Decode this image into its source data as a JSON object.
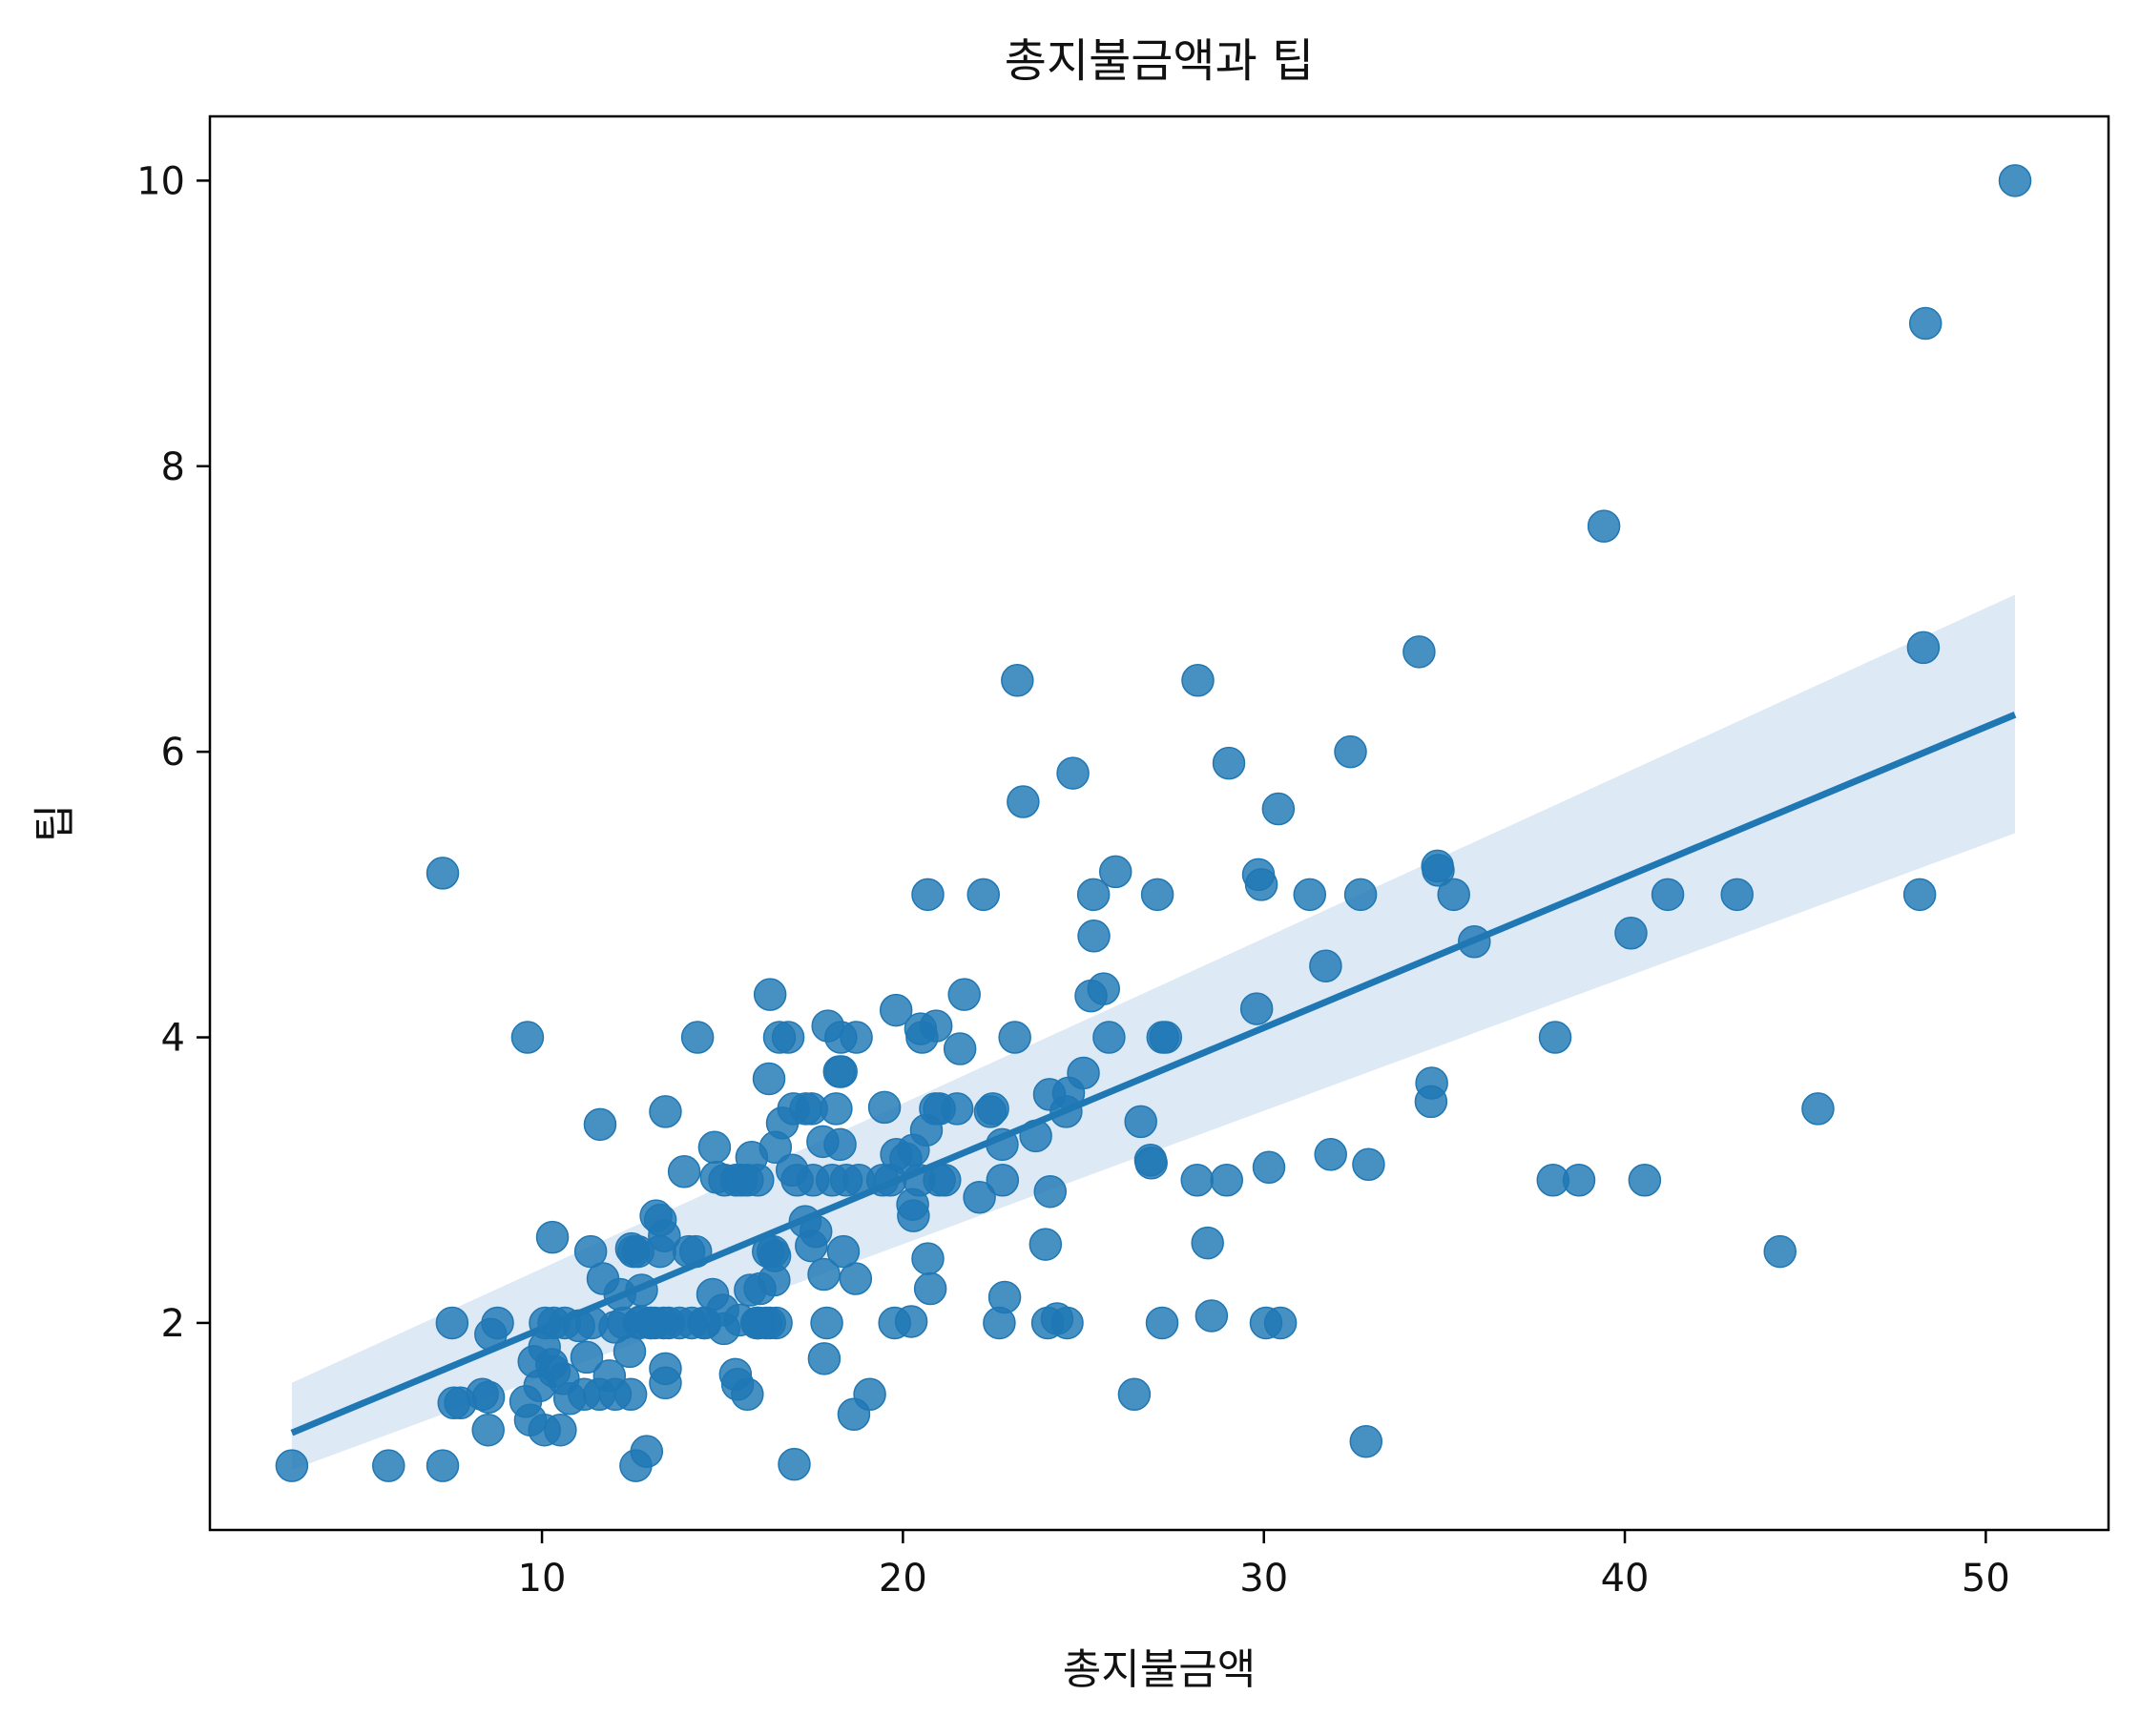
{
  "chart_data": {
    "type": "scatter",
    "title": "총지불금액과 팁",
    "xlabel": "총지불금액",
    "ylabel": "팁",
    "xlim": [
      0.8,
      53.4
    ],
    "ylim": [
      0.55,
      10.45
    ],
    "xticks": [
      10,
      20,
      30,
      40,
      50
    ],
    "yticks": [
      2,
      4,
      6,
      8,
      10
    ],
    "grid": false,
    "colors": {
      "points": "#1f77b4",
      "line": "#1f77b4",
      "band": "#c6dbef"
    },
    "regression": {
      "x_start": 3.07,
      "y_start": 1.23,
      "x_end": 50.81,
      "y_end": 6.26,
      "ci_start": [
        0.97,
        1.58
      ],
      "ci_end": [
        5.43,
        7.1
      ]
    },
    "points": [
      [
        3.07,
        1.0
      ],
      [
        5.75,
        1.0
      ],
      [
        7.25,
        1.0
      ],
      [
        7.25,
        5.15
      ],
      [
        7.51,
        2.0
      ],
      [
        7.56,
        1.44
      ],
      [
        7.74,
        1.44
      ],
      [
        8.35,
        1.5
      ],
      [
        8.51,
        1.25
      ],
      [
        8.52,
        1.48
      ],
      [
        8.58,
        1.92
      ],
      [
        8.77,
        2.0
      ],
      [
        9.55,
        1.45
      ],
      [
        9.6,
        4.0
      ],
      [
        9.68,
        1.32
      ],
      [
        9.78,
        1.73
      ],
      [
        9.94,
        1.56
      ],
      [
        10.07,
        1.83
      ],
      [
        10.07,
        1.25
      ],
      [
        10.09,
        2.0
      ],
      [
        10.27,
        1.71
      ],
      [
        10.29,
        2.6
      ],
      [
        10.33,
        2.0
      ],
      [
        10.34,
        1.66
      ],
      [
        10.51,
        1.25
      ],
      [
        10.59,
        1.61
      ],
      [
        10.63,
        2.0
      ],
      [
        10.77,
        1.47
      ],
      [
        11.02,
        1.98
      ],
      [
        11.17,
        1.5
      ],
      [
        11.24,
        1.76
      ],
      [
        11.35,
        2.5
      ],
      [
        11.38,
        2.0
      ],
      [
        11.59,
        1.5
      ],
      [
        11.61,
        3.39
      ],
      [
        11.69,
        2.31
      ],
      [
        11.87,
        1.63
      ],
      [
        12.02,
        1.97
      ],
      [
        12.03,
        1.5
      ],
      [
        12.16,
        2.2
      ],
      [
        12.26,
        2.0
      ],
      [
        12.43,
        1.8
      ],
      [
        12.46,
        1.5
      ],
      [
        12.48,
        2.52
      ],
      [
        12.54,
        2.5
      ],
      [
        12.6,
        1.0
      ],
      [
        12.66,
        2.5
      ],
      [
        12.69,
        2.0
      ],
      [
        12.74,
        2.01
      ],
      [
        12.76,
        2.23
      ],
      [
        12.9,
        1.1
      ],
      [
        13.0,
        2.0
      ],
      [
        13.03,
        2.0
      ],
      [
        13.13,
        2.0
      ],
      [
        13.16,
        2.75
      ],
      [
        13.27,
        2.5
      ],
      [
        13.28,
        2.72
      ],
      [
        13.37,
        2.0
      ],
      [
        13.39,
        2.61
      ],
      [
        13.42,
        1.58
      ],
      [
        13.42,
        3.48
      ],
      [
        13.42,
        1.68
      ],
      [
        13.51,
        2.0
      ],
      [
        13.81,
        2.0
      ],
      [
        13.94,
        3.06
      ],
      [
        14.07,
        2.5
      ],
      [
        14.15,
        2.0
      ],
      [
        14.26,
        2.5
      ],
      [
        14.31,
        4.0
      ],
      [
        14.48,
        2.0
      ],
      [
        14.52,
        2.0
      ],
      [
        14.73,
        2.2
      ],
      [
        14.78,
        3.23
      ],
      [
        14.83,
        3.02
      ],
      [
        15.01,
        2.09
      ],
      [
        15.04,
        1.96
      ],
      [
        15.06,
        3.0
      ],
      [
        15.36,
        1.64
      ],
      [
        15.38,
        3.0
      ],
      [
        15.42,
        1.57
      ],
      [
        15.48,
        2.02
      ],
      [
        15.53,
        3.0
      ],
      [
        15.69,
        1.5
      ],
      [
        15.69,
        3.0
      ],
      [
        15.77,
        2.23
      ],
      [
        15.81,
        3.16
      ],
      [
        15.95,
        2.0
      ],
      [
        15.98,
        2.0
      ],
      [
        15.98,
        3.0
      ],
      [
        16.0,
        2.0
      ],
      [
        16.04,
        2.24
      ],
      [
        16.21,
        2.0
      ],
      [
        16.27,
        2.5
      ],
      [
        16.29,
        3.71
      ],
      [
        16.31,
        2.0
      ],
      [
        16.32,
        4.3
      ],
      [
        16.4,
        2.5
      ],
      [
        16.43,
        2.3
      ],
      [
        16.45,
        2.47
      ],
      [
        16.47,
        3.23
      ],
      [
        16.49,
        2.0
      ],
      [
        16.58,
        4.0
      ],
      [
        16.66,
        3.4
      ],
      [
        16.82,
        4.0
      ],
      [
        16.93,
        3.07
      ],
      [
        16.97,
        3.5
      ],
      [
        16.99,
        1.01
      ],
      [
        17.07,
        3.0
      ],
      [
        17.29,
        2.71
      ],
      [
        17.31,
        3.5
      ],
      [
        17.46,
        2.54
      ],
      [
        17.47,
        3.5
      ],
      [
        17.51,
        3.0
      ],
      [
        17.59,
        2.64
      ],
      [
        17.78,
        3.27
      ],
      [
        17.81,
        2.34
      ],
      [
        17.82,
        1.75
      ],
      [
        17.89,
        2.0
      ],
      [
        17.92,
        4.08
      ],
      [
        18.04,
        3.0
      ],
      [
        18.15,
        3.5
      ],
      [
        18.24,
        3.76
      ],
      [
        18.26,
        3.25
      ],
      [
        18.28,
        4.0
      ],
      [
        18.29,
        3.76
      ],
      [
        18.35,
        2.5
      ],
      [
        18.43,
        3.0
      ],
      [
        18.64,
        1.36
      ],
      [
        18.69,
        2.31
      ],
      [
        18.71,
        4.0
      ],
      [
        18.78,
        3.0
      ],
      [
        19.08,
        1.5
      ],
      [
        19.44,
        3.0
      ],
      [
        19.49,
        3.51
      ],
      [
        19.65,
        3.0
      ],
      [
        19.77,
        2.0
      ],
      [
        19.81,
        4.19
      ],
      [
        19.82,
        3.18
      ],
      [
        20.08,
        3.15
      ],
      [
        20.23,
        2.01
      ],
      [
        20.27,
        2.83
      ],
      [
        20.29,
        2.75
      ],
      [
        20.29,
        3.21
      ],
      [
        20.45,
        3.0
      ],
      [
        20.49,
        4.06
      ],
      [
        20.53,
        4.0
      ],
      [
        20.65,
        3.35
      ],
      [
        20.69,
        2.45
      ],
      [
        20.69,
        5.0
      ],
      [
        20.76,
        2.24
      ],
      [
        20.9,
        3.5
      ],
      [
        20.92,
        4.08
      ],
      [
        21.01,
        3.5
      ],
      [
        21.01,
        3.0
      ],
      [
        21.16,
        3.0
      ],
      [
        21.5,
        3.5
      ],
      [
        21.58,
        3.92
      ],
      [
        21.7,
        4.3
      ],
      [
        22.12,
        2.88
      ],
      [
        22.23,
        5.0
      ],
      [
        22.42,
        3.48
      ],
      [
        22.49,
        3.5
      ],
      [
        22.67,
        2.0
      ],
      [
        22.75,
        3.25
      ],
      [
        22.76,
        3.0
      ],
      [
        22.82,
        2.18
      ],
      [
        23.1,
        4.0
      ],
      [
        23.17,
        6.5
      ],
      [
        23.33,
        5.65
      ],
      [
        23.68,
        3.31
      ],
      [
        23.95,
        2.55
      ],
      [
        24.01,
        2.0
      ],
      [
        24.06,
        3.6
      ],
      [
        24.08,
        2.92
      ],
      [
        24.27,
        2.03
      ],
      [
        24.52,
        3.48
      ],
      [
        24.55,
        2.0
      ],
      [
        24.59,
        3.61
      ],
      [
        24.71,
        5.85
      ],
      [
        25.0,
        3.75
      ],
      [
        25.21,
        4.29
      ],
      [
        25.28,
        5.0
      ],
      [
        25.29,
        4.71
      ],
      [
        25.56,
        4.34
      ],
      [
        25.71,
        4.0
      ],
      [
        25.89,
        5.16
      ],
      [
        26.41,
        1.5
      ],
      [
        26.59,
        3.41
      ],
      [
        26.86,
        3.14
      ],
      [
        26.88,
        3.12
      ],
      [
        27.05,
        5.0
      ],
      [
        27.18,
        2.0
      ],
      [
        27.2,
        4.0
      ],
      [
        27.28,
        4.0
      ],
      [
        28.15,
        3.0
      ],
      [
        28.17,
        6.5
      ],
      [
        28.44,
        2.56
      ],
      [
        28.55,
        2.05
      ],
      [
        28.97,
        3.0
      ],
      [
        29.03,
        5.92
      ],
      [
        29.8,
        4.2
      ],
      [
        29.85,
        5.14
      ],
      [
        29.93,
        5.07
      ],
      [
        30.06,
        2.0
      ],
      [
        30.14,
        3.09
      ],
      [
        30.4,
        5.6
      ],
      [
        30.46,
        2.0
      ],
      [
        31.27,
        5.0
      ],
      [
        31.71,
        4.5
      ],
      [
        31.85,
        3.18
      ],
      [
        32.4,
        6.0
      ],
      [
        32.68,
        5.0
      ],
      [
        32.83,
        1.17
      ],
      [
        32.9,
        3.11
      ],
      [
        34.3,
        6.7
      ],
      [
        34.63,
        3.55
      ],
      [
        34.65,
        3.68
      ],
      [
        34.81,
        5.2
      ],
      [
        34.83,
        5.17
      ],
      [
        35.26,
        5.0
      ],
      [
        35.83,
        4.67
      ],
      [
        38.01,
        3.0
      ],
      [
        38.07,
        4.0
      ],
      [
        38.73,
        3.0
      ],
      [
        39.42,
        7.58
      ],
      [
        40.17,
        4.73
      ],
      [
        40.55,
        3.0
      ],
      [
        41.19,
        5.0
      ],
      [
        43.11,
        5.0
      ],
      [
        44.3,
        2.5
      ],
      [
        45.35,
        3.5
      ],
      [
        48.17,
        5.0
      ],
      [
        48.27,
        6.73
      ],
      [
        48.33,
        9.0
      ],
      [
        50.81,
        10.0
      ]
    ]
  }
}
